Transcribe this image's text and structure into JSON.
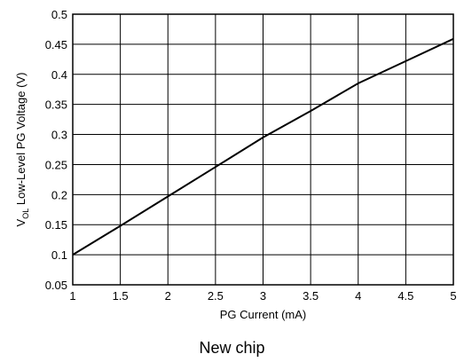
{
  "chart_data": {
    "type": "line",
    "xlabel": "PG Current (mA)",
    "ylabel": {
      "prefix": "V",
      "subscript": "OL",
      "suffix": " Low-Level PG Voltage (V)"
    },
    "xlim": [
      1,
      5
    ],
    "ylim": [
      0.05,
      0.5
    ],
    "x_ticks": [
      "1",
      "1.5",
      "2",
      "2.5",
      "3",
      "3.5",
      "4",
      "4.5",
      "5"
    ],
    "y_ticks": [
      "0.05",
      "0.1",
      "0.15",
      "0.2",
      "0.25",
      "0.3",
      "0.35",
      "0.4",
      "0.45",
      "0.5"
    ],
    "grid": true,
    "series": [
      {
        "x": [
          1,
          1.5,
          2,
          2.5,
          3,
          3.5,
          4,
          4.5,
          5
        ],
        "y": [
          0.1,
          0.148,
          0.197,
          0.246,
          0.295,
          0.339,
          0.385,
          0.422,
          0.459
        ]
      }
    ]
  },
  "caption": "New chip",
  "colors": {
    "line": "#000000",
    "grid": "#000000",
    "background": "#ffffff"
  }
}
